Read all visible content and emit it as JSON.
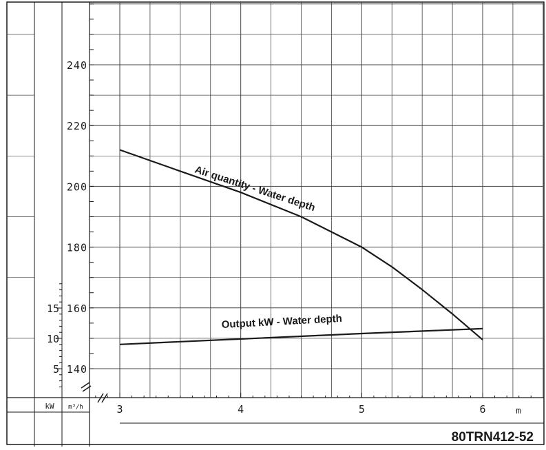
{
  "chart_data": {
    "type": "line",
    "model_label": "80TRN412-52",
    "xlabel": "m",
    "x_ticks": [
      "3",
      "4",
      "5",
      "6"
    ],
    "xlim": [
      2.95,
      6.35
    ],
    "left_axis_unit": "kW",
    "right_axis_unit": "m³/h",
    "kw_ticks": [
      "5",
      "10",
      "15"
    ],
    "kw_tick_values": [
      5,
      10,
      15
    ],
    "kw_range": [
      0,
      20
    ],
    "m3h_ticks": [
      "140",
      "160",
      "180",
      "200",
      "220",
      "240"
    ],
    "m3h_tick_values": [
      140,
      160,
      180,
      200,
      220,
      240
    ],
    "m3h_range": [
      130,
      250
    ],
    "series": [
      {
        "name": "Air quantity - Water depth",
        "axis": "m3h",
        "x": [
          3.0,
          3.5,
          4.0,
          4.5,
          5.0,
          5.25,
          5.5,
          5.75,
          6.0
        ],
        "y": [
          212,
          205,
          198,
          190,
          180,
          173.5,
          166,
          158,
          149.5
        ]
      },
      {
        "name": "Output kW - Water depth",
        "axis": "kw",
        "x": [
          3.0,
          4.0,
          5.0,
          6.0
        ],
        "y": [
          9.0,
          9.9,
          10.8,
          11.6
        ]
      }
    ]
  }
}
